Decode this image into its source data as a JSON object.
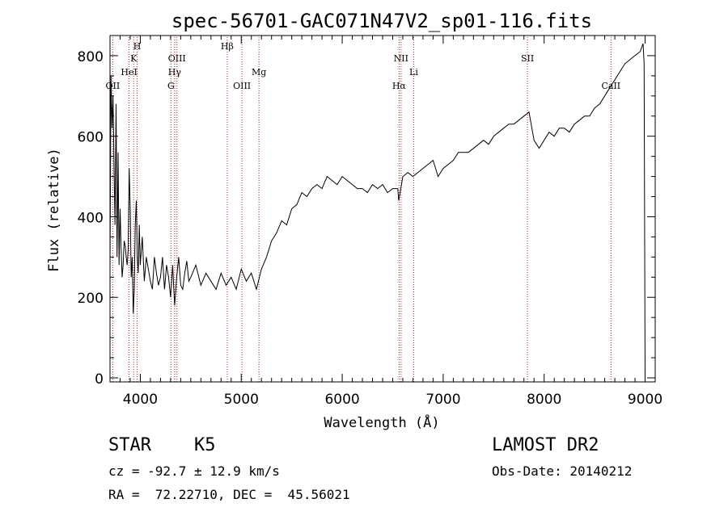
{
  "chart_data": {
    "type": "line",
    "title": "spec-56701-GAC071N47V2_sp01-116.fits",
    "xlabel": "Wavelength (Å)",
    "ylabel": "Flux (relative)",
    "xlim": [
      3700,
      9100
    ],
    "ylim": [
      -10,
      850
    ],
    "xticks": [
      4000,
      5000,
      6000,
      7000,
      8000,
      9000
    ],
    "yticks": [
      0,
      200,
      400,
      600,
      800
    ],
    "grid": false,
    "line_color": "#000000",
    "marker_color": "#b22222",
    "lines": [
      {
        "label": "OII",
        "x": 3727,
        "row": 3
      },
      {
        "label": "K",
        "x": 3934,
        "row": 1
      },
      {
        "label": "HeI",
        "x": 3889,
        "row": 2
      },
      {
        "label": "H",
        "x": 3969,
        "row": 0
      },
      {
        "label": "OIII",
        "x": 4363,
        "row": 1
      },
      {
        "label": "Hγ",
        "x": 4340,
        "row": 2
      },
      {
        "label": "G",
        "x": 4304,
        "row": 3
      },
      {
        "label": "Hβ",
        "x": 4861,
        "row": 0
      },
      {
        "label": "OIII",
        "x": 5007,
        "row": 3
      },
      {
        "label": "Mg",
        "x": 5175,
        "row": 2
      },
      {
        "label": "NII",
        "x": 6583,
        "row": 1
      },
      {
        "label": "Hα",
        "x": 6563,
        "row": 3
      },
      {
        "label": "Li",
        "x": 6708,
        "row": 2
      },
      {
        "label": "SII",
        "x": 7835,
        "row": 1
      },
      {
        "label": "CaII",
        "x": 8662,
        "row": 3
      }
    ],
    "series": [
      {
        "x": [
          3700,
          3710,
          3720,
          3730,
          3740,
          3750,
          3760,
          3770,
          3780,
          3790,
          3800,
          3810,
          3820,
          3830,
          3840,
          3850,
          3860,
          3870,
          3880,
          3890,
          3900,
          3910,
          3920,
          3930,
          3940,
          3950,
          3960,
          3970,
          3980,
          3990,
          4000,
          4020,
          4040,
          4060,
          4080,
          4100,
          4120,
          4140,
          4160,
          4180,
          4200,
          4220,
          4240,
          4260,
          4280,
          4300,
          4320,
          4340,
          4360,
          4380,
          4400,
          4420,
          4440,
          4460,
          4480,
          4500,
          4550,
          4600,
          4650,
          4700,
          4750,
          4800,
          4850,
          4900,
          4950,
          5000,
          5050,
          5100,
          5150,
          5200,
          5250,
          5300,
          5350,
          5400,
          5450,
          5500,
          5550,
          5600,
          5650,
          5700,
          5750,
          5800,
          5850,
          5900,
          5950,
          6000,
          6050,
          6100,
          6150,
          6200,
          6250,
          6300,
          6350,
          6400,
          6450,
          6500,
          6550,
          6560,
          6600,
          6650,
          6700,
          6750,
          6800,
          6850,
          6900,
          6950,
          7000,
          7050,
          7100,
          7150,
          7200,
          7250,
          7300,
          7350,
          7400,
          7450,
          7500,
          7550,
          7600,
          7650,
          7700,
          7750,
          7800,
          7850,
          7900,
          7950,
          8000,
          8050,
          8100,
          8150,
          8200,
          8250,
          8300,
          8350,
          8400,
          8450,
          8500,
          8550,
          8600,
          8650,
          8700,
          8750,
          8800,
          8850,
          8900,
          8950,
          8980,
          8990,
          9000
        ],
        "y": [
          280,
          750,
          620,
          700,
          520,
          380,
          680,
          300,
          560,
          280,
          420,
          320,
          250,
          280,
          340,
          330,
          300,
          280,
          320,
          520,
          420,
          250,
          300,
          160,
          220,
          380,
          440,
          300,
          260,
          380,
          280,
          350,
          240,
          300,
          270,
          240,
          220,
          300,
          260,
          230,
          250,
          300,
          220,
          280,
          250,
          200,
          280,
          180,
          250,
          300,
          230,
          220,
          260,
          290,
          240,
          250,
          280,
          230,
          260,
          240,
          220,
          260,
          230,
          250,
          220,
          270,
          240,
          260,
          220,
          270,
          300,
          340,
          360,
          390,
          380,
          420,
          430,
          460,
          450,
          470,
          480,
          470,
          500,
          490,
          480,
          500,
          490,
          480,
          470,
          470,
          460,
          480,
          470,
          480,
          460,
          470,
          470,
          440,
          500,
          510,
          500,
          510,
          520,
          530,
          540,
          500,
          520,
          530,
          540,
          560,
          560,
          560,
          570,
          580,
          590,
          580,
          600,
          610,
          620,
          630,
          630,
          640,
          650,
          660,
          590,
          570,
          590,
          610,
          600,
          620,
          620,
          610,
          630,
          640,
          650,
          650,
          670,
          680,
          700,
          720,
          740,
          760,
          780,
          790,
          800,
          810,
          830,
          780,
          0
        ]
      }
    ]
  },
  "info": {
    "class_line": "STAR    K5",
    "cz_line": "cz = -92.7 ± 12.9 km/s",
    "radec_line": "RA =  72.22710, DEC =  45.56021",
    "survey": "LAMOST DR2",
    "obs_date": "Obs-Date: 20140212"
  }
}
